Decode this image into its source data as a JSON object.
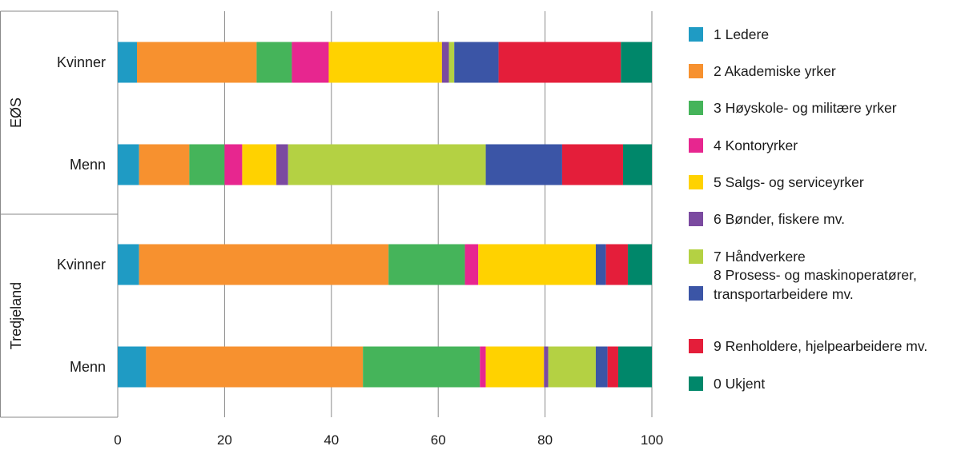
{
  "chart_data": {
    "type": "bar",
    "orientation": "horizontal",
    "stacked": true,
    "xlim": [
      0,
      100
    ],
    "x_ticks": [
      0,
      20,
      40,
      60,
      80,
      100
    ],
    "grid": "vertical",
    "legend_position": "right",
    "groups": [
      {
        "label": "EØS",
        "categories": [
          "Kvinner",
          "Menn"
        ]
      },
      {
        "label": "Tredjeland",
        "categories": [
          "Kvinner",
          "Menn"
        ]
      }
    ],
    "categories": [
      "EØS Kvinner",
      "EØS Menn",
      "Tredjeland Kvinner",
      "Tredjeland Menn"
    ],
    "category_labels": [
      "Kvinner",
      "Menn",
      "Kvinner",
      "Menn"
    ],
    "series": [
      {
        "name": "1 Ledere",
        "color": "#1f9bc4",
        "values": [
          3.6,
          4.0,
          4.0,
          5.3
        ]
      },
      {
        "name": "2 Akademiske yrker",
        "color": "#f7912f",
        "values": [
          22.4,
          9.4,
          46.7,
          40.6
        ]
      },
      {
        "name": "3 Høyskole- og militære yrker",
        "color": "#45b45a",
        "values": [
          6.6,
          6.6,
          14.3,
          21.9
        ]
      },
      {
        "name": "4 Kontoryrker",
        "color": "#e7268f",
        "values": [
          6.9,
          3.3,
          2.5,
          1.1
        ]
      },
      {
        "name": "5 Salgs- og serviceyrker",
        "color": "#ffd200",
        "values": [
          21.2,
          6.4,
          22.0,
          10.9
        ]
      },
      {
        "name": "6 Bønder, fiskere mv.",
        "color": "#7b4aa0",
        "values": [
          1.3,
          2.2,
          0.0,
          0.8
        ]
      },
      {
        "name": "7 Håndverkere",
        "color": "#b4d143",
        "values": [
          1.0,
          37.0,
          0.0,
          8.9
        ]
      },
      {
        "name": "8 Prosess- og maskinoperatører, transportarbeidere mv.",
        "color": "#3b55a6",
        "values": [
          8.3,
          14.3,
          1.9,
          2.2
        ]
      },
      {
        "name": "9 Renholdere, hjelpearbeidere mv.",
        "color": "#e41e3a",
        "values": [
          22.9,
          11.4,
          4.1,
          2.0
        ]
      },
      {
        "name": "0 Ukjent",
        "color": "#00876a",
        "values": [
          5.8,
          5.4,
          4.5,
          6.3
        ]
      }
    ]
  }
}
